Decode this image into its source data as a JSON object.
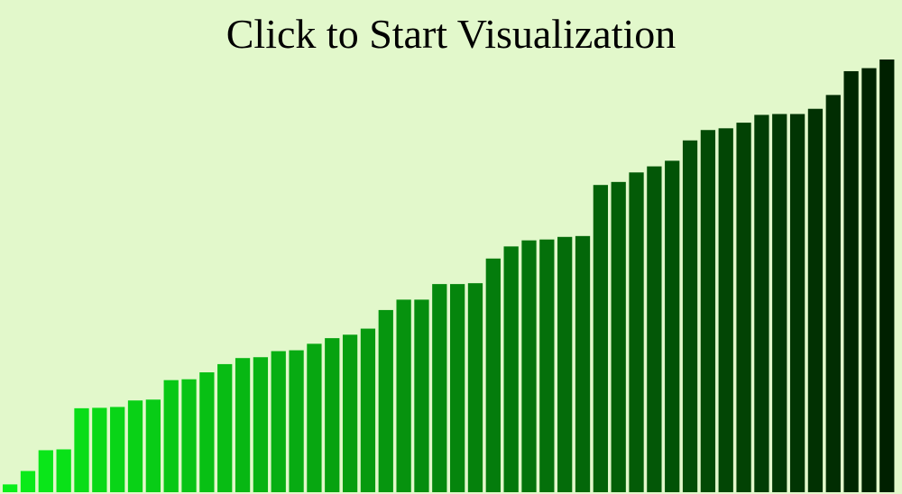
{
  "prompt": {
    "title": "Click to Start Visualization"
  },
  "colors": {
    "background": "#e2f8cb",
    "bar_low": "#0aee1a",
    "bar_high": "#002000",
    "title_text": "#000000"
  },
  "chart_data": {
    "type": "bar",
    "xlabel": "",
    "ylabel": "",
    "ylim": [
      0,
      100
    ],
    "grid": false,
    "legend": "none",
    "values": [
      1.8,
      4.9,
      9.7,
      9.9,
      19.4,
      19.5,
      19.7,
      21.2,
      21.4,
      25.9,
      26.1,
      27.7,
      29.6,
      31.0,
      31.2,
      32.6,
      32.8,
      34.3,
      35.6,
      36.4,
      37.8,
      42.1,
      44.5,
      44.5,
      48.1,
      48.1,
      48.3,
      54.0,
      56.8,
      58.2,
      58.4,
      59.0,
      59.2,
      71.0,
      71.7,
      73.9,
      75.3,
      76.6,
      81.3,
      83.7,
      84.1,
      85.4,
      87.2,
      87.4,
      87.4,
      88.6,
      91.8,
      97.3,
      98.0,
      100.0
    ]
  }
}
